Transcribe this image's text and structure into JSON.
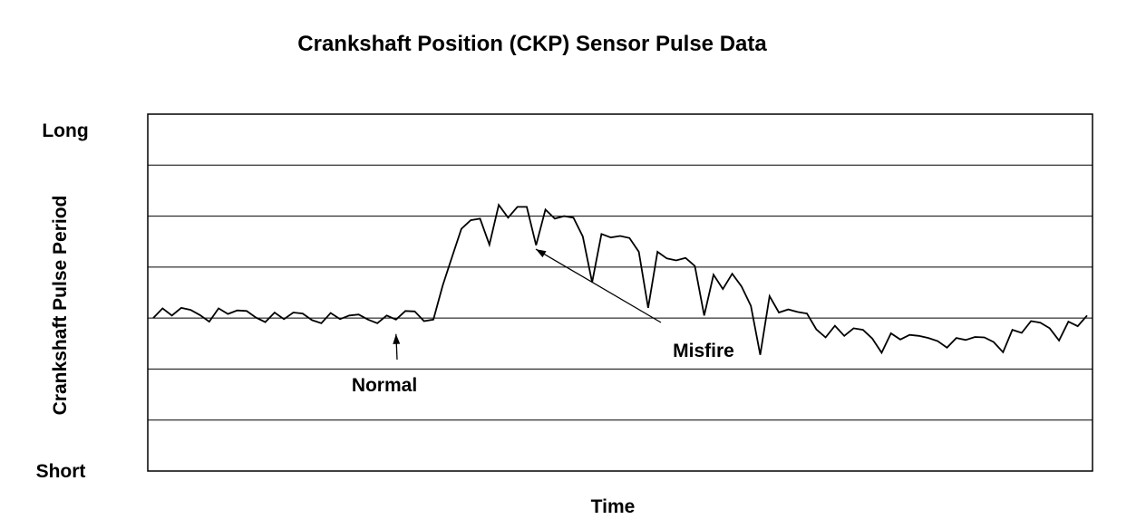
{
  "chart_data": {
    "type": "line",
    "title": "Crankshaft Position (CKP) Sensor Pulse Data",
    "xlabel": "Time",
    "ylabel": "Crankshaft Pulse Period",
    "y_top_label": "Long",
    "y_bottom_label": "Short",
    "xlim": [
      0,
      100
    ],
    "ylim": [
      0,
      7
    ],
    "grid": true,
    "gridlines_y": [
      1,
      2,
      3,
      4,
      5,
      6
    ],
    "line_color": "#000000",
    "series": [
      {
        "name": "",
        "x": [
          0,
          1,
          2,
          3,
          4,
          5,
          6,
          7,
          8,
          9,
          10,
          11,
          12,
          13,
          14,
          15,
          16,
          17,
          18,
          19,
          20,
          21,
          22,
          23,
          24,
          25,
          26,
          27,
          28,
          29,
          30,
          31,
          32,
          33,
          34,
          35,
          36,
          37,
          38,
          39,
          40,
          41,
          42,
          43,
          44,
          45,
          46,
          47,
          48,
          49,
          50,
          51,
          52,
          53,
          54,
          55,
          56,
          57,
          58,
          59,
          60,
          61,
          62,
          63,
          64,
          65,
          66,
          67,
          68,
          69,
          70,
          71,
          72,
          73,
          74,
          75,
          76,
          77,
          78,
          79,
          80,
          81,
          82,
          83,
          84,
          85,
          86,
          87,
          88,
          89,
          90,
          91,
          92,
          93,
          94,
          95,
          96,
          97,
          98,
          99,
          100
        ],
        "y": [
          3.0,
          3.19,
          3.05,
          3.2,
          3.16,
          3.06,
          2.93,
          3.19,
          3.08,
          3.15,
          3.14,
          3.01,
          2.92,
          3.11,
          2.98,
          3.11,
          3.09,
          2.96,
          2.9,
          3.1,
          2.98,
          3.05,
          3.07,
          2.97,
          2.9,
          3.05,
          2.97,
          3.14,
          3.13,
          2.94,
          2.97,
          3.64,
          4.2,
          4.75,
          4.92,
          4.95,
          4.44,
          5.22,
          4.97,
          5.18,
          5.18,
          4.43,
          5.13,
          4.95,
          5.0,
          4.97,
          4.6,
          3.7,
          4.65,
          4.58,
          4.61,
          4.57,
          4.3,
          3.2,
          4.3,
          4.17,
          4.13,
          4.18,
          4.02,
          3.05,
          3.85,
          3.57,
          3.87,
          3.62,
          3.24,
          2.28,
          3.43,
          3.11,
          3.17,
          3.12,
          3.09,
          2.78,
          2.62,
          2.85,
          2.65,
          2.8,
          2.77,
          2.6,
          2.32,
          2.7,
          2.58,
          2.67,
          2.65,
          2.61,
          2.55,
          2.42,
          2.61,
          2.57,
          2.63,
          2.62,
          2.53,
          2.33,
          2.77,
          2.71,
          2.94,
          2.91,
          2.8,
          2.56,
          2.93,
          2.84,
          3.05
        ]
      }
    ],
    "annotations": [
      {
        "text": "Normal",
        "arrow_to": {
          "x": 26,
          "y": 2.9
        }
      },
      {
        "text": "Misfire",
        "arrow_to": {
          "x": 40,
          "y": 4.6
        }
      }
    ]
  }
}
